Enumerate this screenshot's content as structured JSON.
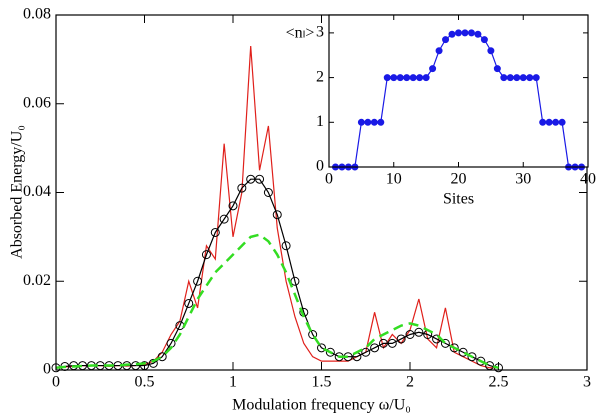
{
  "chart_data": [
    {
      "type": "line",
      "xlabel": "Modulation frequency ω/U₀",
      "ylabel": "Absorbed Energy/U₀",
      "xlim": [
        0,
        3
      ],
      "ylim": [
        0,
        0.08
      ],
      "xticks": [
        0,
        0.5,
        1,
        1.5,
        2,
        2.5,
        3
      ],
      "yticks": [
        0,
        0.02,
        0.04,
        0.06,
        0.08
      ],
      "x": [
        0,
        0.05,
        0.1,
        0.15,
        0.2,
        0.25,
        0.3,
        0.35,
        0.4,
        0.45,
        0.5,
        0.55,
        0.6,
        0.65,
        0.7,
        0.75,
        0.8,
        0.85,
        0.9,
        0.95,
        1.0,
        1.05,
        1.1,
        1.15,
        1.2,
        1.25,
        1.3,
        1.35,
        1.4,
        1.45,
        1.5,
        1.55,
        1.6,
        1.65,
        1.7,
        1.75,
        1.8,
        1.85,
        1.9,
        1.95,
        2.0,
        2.05,
        2.1,
        2.15,
        2.2,
        2.25,
        2.3,
        2.35,
        2.4,
        2.45,
        2.5
      ],
      "series": [
        {
          "color": "#e0201b",
          "line_style": "solid",
          "marker": "none",
          "values": [
            0.0005,
            0.0007,
            0.0008,
            0.001,
            0.0009,
            0.001,
            0.0008,
            0.001,
            0.0009,
            0.001,
            0.0012,
            0.002,
            0.004,
            0.008,
            0.011,
            0.02,
            0.014,
            0.028,
            0.025,
            0.051,
            0.03,
            0.04,
            0.073,
            0.045,
            0.055,
            0.032,
            0.02,
            0.012,
            0.006,
            0.003,
            0.002,
            0.002,
            0.002,
            0.002,
            0.003,
            0.004,
            0.013,
            0.005,
            0.008,
            0.006,
            0.009,
            0.016,
            0.007,
            0.005,
            0.014,
            0.004,
            0.003,
            0.002,
            0.001,
            0.0005,
            0.0005
          ]
        },
        {
          "color": "#000000",
          "line_style": "solid",
          "marker": "circle",
          "values": [
            0.0005,
            0.0008,
            0.001,
            0.001,
            0.001,
            0.001,
            0.001,
            0.001,
            0.001,
            0.001,
            0.001,
            0.0015,
            0.003,
            0.006,
            0.01,
            0.015,
            0.02,
            0.026,
            0.031,
            0.034,
            0.037,
            0.041,
            0.043,
            0.043,
            0.04,
            0.035,
            0.028,
            0.02,
            0.013,
            0.008,
            0.005,
            0.004,
            0.003,
            0.003,
            0.003,
            0.004,
            0.005,
            0.006,
            0.006,
            0.007,
            0.008,
            0.0085,
            0.008,
            0.007,
            0.006,
            0.005,
            0.004,
            0.003,
            0.002,
            0.001,
            0.0005
          ]
        },
        {
          "color": "#33dd22",
          "line_style": "dashed",
          "marker": "none",
          "values": [
            0.0005,
            0.0007,
            0.0008,
            0.0009,
            0.001,
            0.001,
            0.001,
            0.001,
            0.0012,
            0.0013,
            0.0015,
            0.002,
            0.003,
            0.005,
            0.008,
            0.012,
            0.016,
            0.019,
            0.022,
            0.024,
            0.026,
            0.028,
            0.03,
            0.0305,
            0.029,
            0.026,
            0.022,
            0.017,
            0.012,
            0.008,
            0.005,
            0.004,
            0.003,
            0.003,
            0.004,
            0.005,
            0.007,
            0.008,
            0.009,
            0.01,
            0.0105,
            0.01,
            0.009,
            0.008,
            0.006,
            0.005,
            0.004,
            0.003,
            0.002,
            0.001,
            0.0005
          ]
        }
      ]
    },
    {
      "type": "line",
      "xlabel": "Sites",
      "ylabel": "<nₗ>",
      "xlim": [
        0,
        40
      ],
      "ylim": [
        0,
        3.4
      ],
      "xticks": [
        0,
        10,
        20,
        30,
        40
      ],
      "yticks": [
        0,
        1,
        2,
        3
      ],
      "x": [
        1,
        2,
        3,
        4,
        5,
        6,
        7,
        8,
        9,
        10,
        11,
        12,
        13,
        14,
        15,
        16,
        17,
        18,
        19,
        20,
        21,
        22,
        23,
        24,
        25,
        26,
        27,
        28,
        29,
        30,
        31,
        32,
        33,
        34,
        35,
        36,
        37,
        38,
        39
      ],
      "series": [
        {
          "color": "#1a1ae6",
          "line_style": "solid",
          "marker": "dot",
          "values": [
            0,
            0,
            0,
            0,
            1,
            1,
            1,
            1,
            2,
            2,
            2,
            2,
            2,
            2,
            2,
            2.2,
            2.6,
            2.85,
            2.97,
            3,
            3,
            3,
            2.97,
            2.85,
            2.6,
            2.2,
            2,
            2,
            2,
            2,
            2,
            2,
            1,
            1,
            1,
            1,
            0,
            0,
            0
          ]
        }
      ]
    }
  ]
}
